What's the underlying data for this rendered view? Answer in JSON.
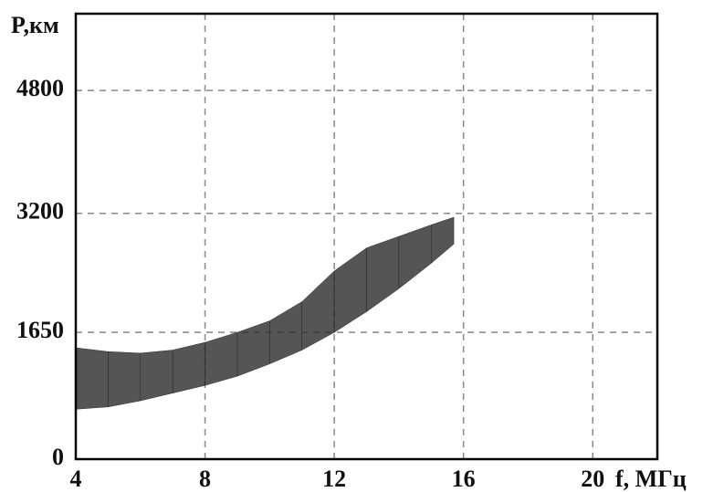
{
  "chart_data": {
    "type": "band",
    "y_label": "P,км",
    "x_label": "f, МГц",
    "x": [
      4,
      5,
      6,
      7,
      8,
      9,
      10,
      11,
      12,
      13,
      14,
      15,
      15.7
    ],
    "low": [
      650,
      680,
      760,
      860,
      960,
      1080,
      1240,
      1420,
      1650,
      1920,
      2220,
      2550,
      2800
    ],
    "high": [
      1450,
      1400,
      1380,
      1420,
      1520,
      1650,
      1800,
      2050,
      2450,
      2750,
      2900,
      3050,
      3150
    ],
    "color": "#2b2b2b",
    "xlim": [
      4,
      22
    ],
    "ylim": [
      0,
      5800
    ],
    "xticks": [
      4,
      8,
      12,
      16,
      20
    ],
    "yticks": [
      0,
      1650,
      3200,
      4800
    ],
    "grid": true
  }
}
